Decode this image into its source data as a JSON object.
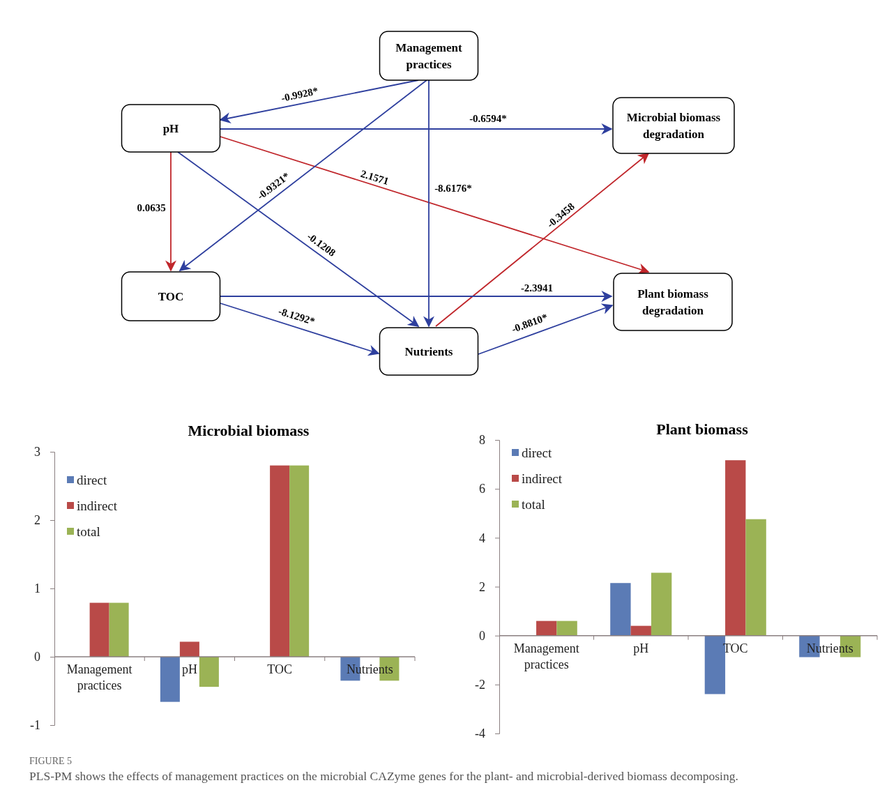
{
  "chart_data": [
    {
      "type": "other",
      "categories": [
        "Management practices",
        "pH",
        "Microbial biomass degradation",
        "TOC",
        "Plant biomass degradation",
        "Nutrients"
      ],
      "annotations": [
        "-0.9928*",
        "-0.6594*",
        "2.1571",
        "0.0635",
        "-0.9321*",
        "-0.1208",
        "-8.6176*",
        "-0.3458",
        "-2.3941",
        "-8.1292*",
        "-0.8810*"
      ]
    },
    {
      "type": "bar",
      "title": "Microbial biomass",
      "categories": [
        "Management practices",
        "pH",
        "TOC",
        "Nutrients"
      ],
      "series": [
        {
          "name": "direct",
          "color": "#5b7bb5",
          "values": [
            0,
            -0.66,
            0,
            -0.35
          ]
        },
        {
          "name": "indirect",
          "color": "#b94a48",
          "values": [
            0.79,
            0.22,
            2.8,
            0
          ]
        },
        {
          "name": "total",
          "color": "#9bb355",
          "values": [
            0.79,
            -0.44,
            2.8,
            -0.35
          ]
        }
      ],
      "ylim": [
        -1,
        3
      ],
      "yticks": [
        -1,
        0,
        1,
        2,
        3
      ],
      "legend": "top left"
    },
    {
      "type": "bar",
      "title": "Plant biomass",
      "categories": [
        "Management practices",
        "pH",
        "TOC",
        "Nutrients"
      ],
      "series": [
        {
          "name": "direct",
          "color": "#5b7bb5",
          "values": [
            0,
            2.15,
            -2.39,
            -0.88
          ]
        },
        {
          "name": "indirect",
          "color": "#b94a48",
          "values": [
            0.6,
            0.4,
            7.17,
            0
          ]
        },
        {
          "name": "total",
          "color": "#9bb355",
          "values": [
            0.6,
            2.57,
            4.76,
            -0.88
          ]
        }
      ],
      "ylim": [
        -4,
        8
      ],
      "yticks": [
        -4,
        -2,
        0,
        2,
        4,
        6,
        8
      ],
      "legend": "top left",
      "annotations": [
        "FIGURE 5",
        "PLS-PM shows the effects of management practices on the microbial CAZyme genes for the plant- and microbial-derived biomass decomposing."
      ]
    }
  ]
}
